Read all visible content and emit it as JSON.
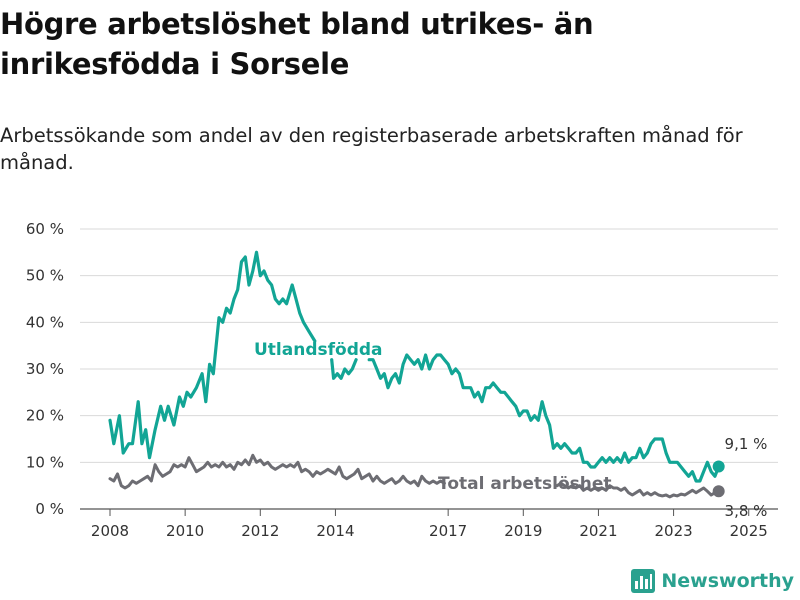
{
  "title": "Högre arbetslöshet bland utrikes- än inrikesfödda i Sorsele",
  "subtitle": "Arbetssökande som andel av den registerbaserade arbetskraften månad för månad.",
  "brand": {
    "name": "Newsworthy",
    "color": "#2aa18f",
    "icon": "bar-chart-logo-icon"
  },
  "colors": {
    "foreign_born": "#12a595",
    "total": "#6d6d73",
    "grid": "#d9d9d9",
    "axis": "#333333"
  },
  "chart_data": {
    "type": "line",
    "title": "Högre arbetslöshet bland utrikes- än inrikesfödda i Sorsele",
    "subtitle": "Arbetssökande som andel av den registerbaserade arbetskraften månad för månad.",
    "xlabel": "",
    "ylabel": "",
    "ylim": [
      0,
      60
    ],
    "yticks": [
      0,
      10,
      20,
      30,
      40,
      50,
      60
    ],
    "ytick_labels": [
      "0 %",
      "10 %",
      "20 %",
      "30 %",
      "40 %",
      "50 %",
      "60 %"
    ],
    "xlim": [
      2008,
      2025.3
    ],
    "xticks": [
      2008,
      2010,
      2012,
      2014,
      2017,
      2019,
      2021,
      2023,
      2025
    ],
    "xtick_labels": [
      "2008",
      "2010",
      "2012",
      "2014",
      "2017",
      "2019",
      "2021",
      "2023",
      "2025"
    ],
    "grid": true,
    "legend": "inline labels",
    "series": [
      {
        "name": "Utlandsfödda",
        "end_label": "9,1 %",
        "end_value": 9.1,
        "points": [
          [
            2008.0,
            19
          ],
          [
            2008.1,
            14
          ],
          [
            2008.25,
            20
          ],
          [
            2008.35,
            12
          ],
          [
            2008.5,
            14
          ],
          [
            2008.6,
            14
          ],
          [
            2008.75,
            23
          ],
          [
            2008.85,
            14
          ],
          [
            2008.95,
            17
          ],
          [
            2009.05,
            11
          ],
          [
            2009.2,
            17
          ],
          [
            2009.35,
            22
          ],
          [
            2009.45,
            19
          ],
          [
            2009.55,
            22
          ],
          [
            2009.7,
            18
          ],
          [
            2009.85,
            24
          ],
          [
            2009.95,
            22
          ],
          [
            2010.05,
            25
          ],
          [
            2010.15,
            24
          ],
          [
            2010.3,
            26
          ],
          [
            2010.45,
            29
          ],
          [
            2010.55,
            23
          ],
          [
            2010.65,
            31
          ],
          [
            2010.75,
            29
          ],
          [
            2010.9,
            41
          ],
          [
            2011.0,
            40
          ],
          [
            2011.1,
            43
          ],
          [
            2011.2,
            42
          ],
          [
            2011.3,
            45
          ],
          [
            2011.4,
            47
          ],
          [
            2011.5,
            53
          ],
          [
            2011.6,
            54
          ],
          [
            2011.7,
            48
          ],
          [
            2011.8,
            51
          ],
          [
            2011.9,
            55
          ],
          [
            2012.0,
            50
          ],
          [
            2012.1,
            51
          ],
          [
            2012.2,
            49
          ],
          [
            2012.3,
            48
          ],
          [
            2012.4,
            45
          ],
          [
            2012.5,
            44
          ],
          [
            2012.6,
            45
          ],
          [
            2012.7,
            44
          ],
          [
            2012.85,
            48
          ],
          [
            2012.95,
            45
          ],
          [
            2013.05,
            42
          ],
          [
            2013.15,
            40
          ],
          [
            2013.3,
            38
          ],
          [
            2013.45,
            36
          ],
          null,
          [
            2013.9,
            32
          ],
          [
            2013.95,
            28
          ],
          [
            2014.05,
            29
          ],
          [
            2014.15,
            28
          ],
          [
            2014.25,
            30
          ],
          [
            2014.35,
            29
          ],
          [
            2014.45,
            30
          ],
          [
            2014.55,
            32
          ],
          null,
          [
            2014.9,
            32
          ],
          [
            2015.0,
            32
          ],
          [
            2015.1,
            30
          ],
          [
            2015.2,
            28
          ],
          [
            2015.3,
            29
          ],
          [
            2015.4,
            26
          ],
          [
            2015.5,
            28
          ],
          [
            2015.6,
            29
          ],
          [
            2015.7,
            27
          ],
          [
            2015.8,
            31
          ],
          [
            2015.9,
            33
          ],
          [
            2016.0,
            32
          ],
          [
            2016.1,
            31
          ],
          [
            2016.2,
            32
          ],
          [
            2016.3,
            30
          ],
          [
            2016.4,
            33
          ],
          [
            2016.5,
            30
          ],
          [
            2016.6,
            32
          ],
          [
            2016.7,
            33
          ],
          [
            2016.8,
            33
          ],
          [
            2016.9,
            32
          ],
          [
            2017.0,
            31
          ],
          [
            2017.1,
            29
          ],
          [
            2017.2,
            30
          ],
          [
            2017.3,
            29
          ],
          [
            2017.4,
            26
          ],
          [
            2017.5,
            26
          ],
          [
            2017.6,
            26
          ],
          [
            2017.7,
            24
          ],
          [
            2017.8,
            25
          ],
          [
            2017.9,
            23
          ],
          [
            2018.0,
            26
          ],
          [
            2018.1,
            26
          ],
          [
            2018.2,
            27
          ],
          [
            2018.3,
            26
          ],
          [
            2018.4,
            25
          ],
          [
            2018.5,
            25
          ],
          [
            2018.6,
            24
          ],
          [
            2018.7,
            23
          ],
          [
            2018.8,
            22
          ],
          [
            2018.9,
            20
          ],
          [
            2019.0,
            21
          ],
          [
            2019.1,
            21
          ],
          [
            2019.2,
            19
          ],
          [
            2019.3,
            20
          ],
          [
            2019.4,
            19
          ],
          [
            2019.5,
            23
          ],
          [
            2019.6,
            20
          ],
          [
            2019.7,
            18
          ],
          [
            2019.8,
            13
          ],
          [
            2019.9,
            14
          ],
          [
            2020.0,
            13
          ],
          [
            2020.1,
            14
          ],
          [
            2020.2,
            13
          ],
          [
            2020.3,
            12
          ],
          [
            2020.4,
            12
          ],
          [
            2020.5,
            13
          ],
          [
            2020.6,
            10
          ],
          [
            2020.7,
            10
          ],
          [
            2020.8,
            9
          ],
          [
            2020.9,
            9
          ],
          [
            2021.0,
            10
          ],
          [
            2021.1,
            11
          ],
          [
            2021.2,
            10
          ],
          [
            2021.3,
            11
          ],
          [
            2021.4,
            10
          ],
          [
            2021.5,
            11
          ],
          [
            2021.6,
            10
          ],
          [
            2021.7,
            12
          ],
          [
            2021.8,
            10
          ],
          [
            2021.9,
            11
          ],
          [
            2022.0,
            11
          ],
          [
            2022.1,
            13
          ],
          [
            2022.2,
            11
          ],
          [
            2022.3,
            12
          ],
          [
            2022.4,
            14
          ],
          [
            2022.5,
            15
          ],
          [
            2022.6,
            15
          ],
          [
            2022.7,
            15
          ],
          [
            2022.8,
            12
          ],
          [
            2022.9,
            10
          ],
          [
            2023.0,
            10
          ],
          [
            2023.1,
            10
          ],
          [
            2023.2,
            9
          ],
          [
            2023.3,
            8
          ],
          [
            2023.4,
            7
          ],
          [
            2023.5,
            8
          ],
          [
            2023.6,
            6
          ],
          [
            2023.7,
            6
          ],
          [
            2023.8,
            8
          ],
          [
            2023.9,
            10
          ],
          [
            2024.0,
            8
          ],
          [
            2024.1,
            7
          ],
          [
            2024.2,
            9.1
          ]
        ]
      },
      {
        "name": "Total arbetslöshet",
        "end_label": "3,8 %",
        "end_value": 3.8,
        "points": [
          [
            2008.0,
            6.5
          ],
          [
            2008.1,
            6
          ],
          [
            2008.2,
            7.5
          ],
          [
            2008.3,
            5
          ],
          [
            2008.4,
            4.5
          ],
          [
            2008.5,
            5
          ],
          [
            2008.6,
            6
          ],
          [
            2008.7,
            5.5
          ],
          [
            2008.8,
            6
          ],
          [
            2008.9,
            6.5
          ],
          [
            2009.0,
            7
          ],
          [
            2009.1,
            6
          ],
          [
            2009.2,
            9.5
          ],
          [
            2009.3,
            8
          ],
          [
            2009.4,
            7
          ],
          [
            2009.5,
            7.5
          ],
          [
            2009.6,
            8
          ],
          [
            2009.7,
            9.5
          ],
          [
            2009.8,
            9
          ],
          [
            2009.9,
            9.5
          ],
          [
            2010.0,
            9
          ],
          [
            2010.1,
            11
          ],
          [
            2010.2,
            9.5
          ],
          [
            2010.3,
            8
          ],
          [
            2010.4,
            8.5
          ],
          [
            2010.5,
            9
          ],
          [
            2010.6,
            10
          ],
          [
            2010.7,
            9
          ],
          [
            2010.8,
            9.5
          ],
          [
            2010.9,
            9
          ],
          [
            2011.0,
            10
          ],
          [
            2011.1,
            9
          ],
          [
            2011.2,
            9.5
          ],
          [
            2011.3,
            8.5
          ],
          [
            2011.4,
            10
          ],
          [
            2011.5,
            9.5
          ],
          [
            2011.6,
            10.5
          ],
          [
            2011.7,
            9.5
          ],
          [
            2011.8,
            11.5
          ],
          [
            2011.9,
            10
          ],
          [
            2012.0,
            10.5
          ],
          [
            2012.1,
            9.5
          ],
          [
            2012.2,
            10
          ],
          [
            2012.3,
            9
          ],
          [
            2012.4,
            8.5
          ],
          [
            2012.5,
            9
          ],
          [
            2012.6,
            9.5
          ],
          [
            2012.7,
            9
          ],
          [
            2012.8,
            9.5
          ],
          [
            2012.9,
            9
          ],
          [
            2013.0,
            10
          ],
          [
            2013.1,
            8
          ],
          [
            2013.2,
            8.5
          ],
          [
            2013.3,
            8
          ],
          [
            2013.4,
            7
          ],
          [
            2013.5,
            8
          ],
          [
            2013.6,
            7.5
          ],
          [
            2013.7,
            8
          ],
          [
            2013.8,
            8.5
          ],
          [
            2013.9,
            8
          ],
          [
            2014.0,
            7.5
          ],
          [
            2014.1,
            9
          ],
          [
            2014.2,
            7
          ],
          [
            2014.3,
            6.5
          ],
          [
            2014.4,
            7
          ],
          [
            2014.5,
            7.5
          ],
          [
            2014.6,
            8.5
          ],
          [
            2014.7,
            6.5
          ],
          [
            2014.8,
            7
          ],
          [
            2014.9,
            7.5
          ],
          [
            2015.0,
            6
          ],
          [
            2015.1,
            7
          ],
          [
            2015.2,
            6
          ],
          [
            2015.3,
            5.5
          ],
          [
            2015.4,
            6
          ],
          [
            2015.5,
            6.5
          ],
          [
            2015.6,
            5.5
          ],
          [
            2015.7,
            6
          ],
          [
            2015.8,
            7
          ],
          [
            2015.9,
            6
          ],
          [
            2016.0,
            5.5
          ],
          [
            2016.1,
            6
          ],
          [
            2016.2,
            5
          ],
          [
            2016.3,
            7
          ],
          [
            2016.4,
            6
          ],
          [
            2016.5,
            5.5
          ],
          [
            2016.6,
            6
          ],
          [
            2016.7,
            5.5
          ],
          [
            2016.8,
            6
          ],
          [
            2016.9,
            5.5
          ],
          null,
          [
            2019.9,
            5
          ],
          [
            2020.0,
            5.5
          ],
          [
            2020.1,
            5
          ],
          [
            2020.2,
            4.5
          ],
          [
            2020.3,
            5
          ],
          [
            2020.4,
            4.5
          ],
          [
            2020.5,
            5
          ],
          [
            2020.6,
            4
          ],
          [
            2020.7,
            4.5
          ],
          [
            2020.8,
            4
          ],
          [
            2020.9,
            4.5
          ],
          [
            2021.0,
            4
          ],
          [
            2021.1,
            4.5
          ],
          [
            2021.2,
            4
          ],
          [
            2021.3,
            5
          ],
          [
            2021.4,
            4.5
          ],
          [
            2021.5,
            4.5
          ],
          [
            2021.6,
            4
          ],
          [
            2021.7,
            4.5
          ],
          [
            2021.8,
            3.5
          ],
          [
            2021.9,
            3
          ],
          [
            2022.0,
            3.5
          ],
          [
            2022.1,
            4
          ],
          [
            2022.2,
            3
          ],
          [
            2022.3,
            3.5
          ],
          [
            2022.4,
            3
          ],
          [
            2022.5,
            3.5
          ],
          [
            2022.6,
            3
          ],
          [
            2022.7,
            2.8
          ],
          [
            2022.8,
            3
          ],
          [
            2022.9,
            2.6
          ],
          [
            2023.0,
            3
          ],
          [
            2023.1,
            2.8
          ],
          [
            2023.2,
            3.2
          ],
          [
            2023.3,
            3
          ],
          [
            2023.4,
            3.5
          ],
          [
            2023.5,
            4
          ],
          [
            2023.6,
            3.5
          ],
          [
            2023.7,
            4
          ],
          [
            2023.8,
            4.5
          ],
          [
            2023.9,
            3.8
          ],
          [
            2024.0,
            3
          ],
          [
            2024.1,
            3.5
          ],
          [
            2024.2,
            3.8
          ]
        ]
      }
    ]
  }
}
